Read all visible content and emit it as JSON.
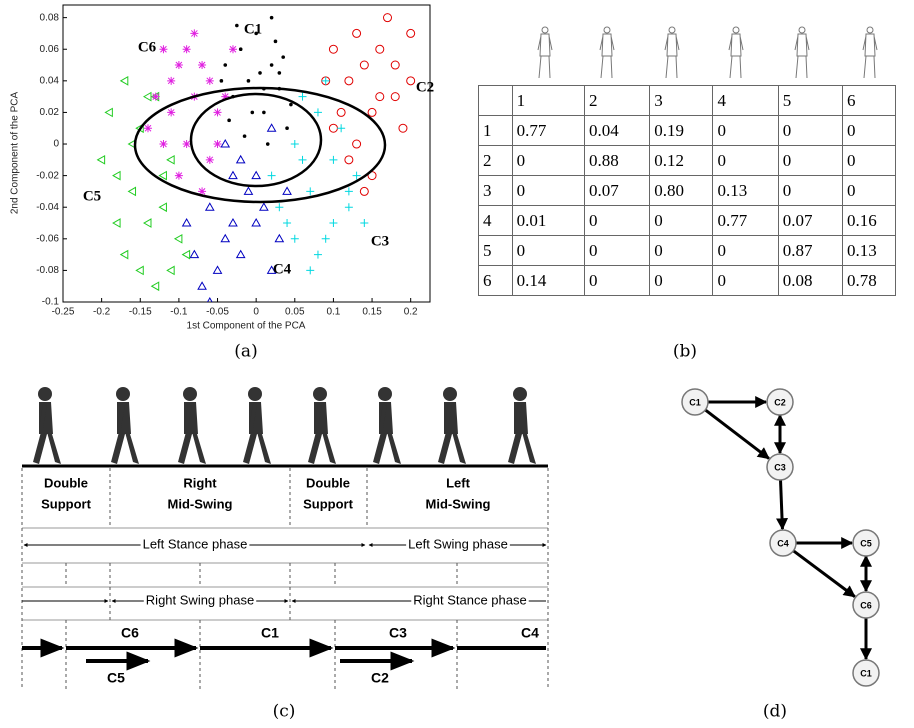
{
  "chart_data": {
    "type": "scatter",
    "xlabel": "1st Component of the PCA",
    "ylabel": "2nd Component of the PCA",
    "xlim": [
      -0.25,
      0.225
    ],
    "ylim": [
      -0.1,
      0.088
    ],
    "xticks": [
      -0.25,
      -0.2,
      -0.15,
      -0.1,
      -0.05,
      0,
      0.05,
      0.1,
      0.15,
      0.2
    ],
    "yticks": [
      -0.1,
      -0.08,
      -0.06,
      -0.04,
      -0.02,
      0,
      0.02,
      0.04,
      0.06,
      0.08
    ],
    "series": [
      {
        "name": "C1",
        "color": "#000000",
        "marker": "dot",
        "x": [
          -0.04,
          -0.03,
          -0.02,
          -0.01,
          0,
          0.01,
          0.02,
          0.03,
          0.04,
          -0.035,
          -0.015,
          0.005,
          0.025,
          0.045,
          -0.025,
          0.015,
          0.035,
          -0.005,
          0.02,
          0.01,
          0.03,
          -0.045
        ],
        "values": [
          0.05,
          0.03,
          0.06,
          0.04,
          0.07,
          0.02,
          0.05,
          0.035,
          0.01,
          0.015,
          0.005,
          0.045,
          0.065,
          0.025,
          0.075,
          0,
          0.055,
          0.02,
          0.08,
          0.035,
          0.045,
          0.04
        ]
      },
      {
        "name": "C2",
        "color": "#e00000",
        "marker": "circle",
        "x": [
          0.1,
          0.12,
          0.15,
          0.18,
          0.2,
          0.13,
          0.16,
          0.11,
          0.14,
          0.17,
          0.19,
          0.09,
          0.12,
          0.15,
          0.18,
          0.1,
          0.13,
          0.16,
          0.2,
          0.14
        ],
        "values": [
          0.06,
          0.04,
          0.02,
          0.05,
          0.07,
          0,
          0.03,
          0.02,
          0.05,
          0.08,
          0.01,
          0.04,
          -0.01,
          -0.02,
          0.03,
          0.01,
          0.07,
          0.06,
          0.04,
          -0.03
        ]
      },
      {
        "name": "C3",
        "color": "#00d8e0",
        "marker": "plus",
        "x": [
          0.02,
          0.05,
          0.08,
          0.1,
          0.12,
          0.04,
          0.07,
          0.09,
          0.11,
          0.03,
          0.06,
          0.13,
          0.08,
          0.1,
          0.05,
          0.14,
          0.07,
          0.09,
          0.12,
          0.06
        ],
        "values": [
          -0.02,
          0,
          0.02,
          -0.01,
          -0.04,
          -0.05,
          -0.03,
          -0.06,
          0.01,
          -0.04,
          0.03,
          -0.02,
          -0.07,
          -0.05,
          -0.06,
          -0.05,
          -0.08,
          0.04,
          -0.03,
          -0.01
        ]
      },
      {
        "name": "C4",
        "color": "#0000c0",
        "marker": "triangle",
        "x": [
          -0.04,
          -0.02,
          0,
          0.02,
          0.04,
          -0.06,
          -0.03,
          -0.01,
          0.01,
          0.03,
          -0.08,
          -0.05,
          -0.07,
          -0.04,
          -0.02,
          0,
          -0.09,
          -0.06,
          -0.03,
          0.02
        ],
        "values": [
          0,
          -0.01,
          -0.02,
          0.01,
          -0.03,
          -0.04,
          -0.05,
          -0.03,
          -0.04,
          -0.06,
          -0.07,
          -0.08,
          -0.09,
          -0.06,
          -0.07,
          -0.05,
          -0.05,
          -0.1,
          -0.02,
          -0.08
        ]
      },
      {
        "name": "C5",
        "color": "#22cc22",
        "marker": "triangle-left",
        "x": [
          -0.19,
          -0.17,
          -0.15,
          -0.13,
          -0.11,
          -0.18,
          -0.16,
          -0.14,
          -0.12,
          -0.1,
          -0.2,
          -0.17,
          -0.15,
          -0.13,
          -0.11,
          -0.16,
          -0.14,
          -0.12,
          -0.09,
          -0.18
        ],
        "values": [
          0.02,
          0.04,
          0.01,
          0.03,
          -0.01,
          -0.02,
          -0.03,
          -0.05,
          -0.04,
          -0.06,
          -0.01,
          -0.07,
          -0.08,
          -0.09,
          -0.08,
          0,
          0.03,
          -0.02,
          -0.07,
          -0.05
        ]
      },
      {
        "name": "C6",
        "color": "#e020e0",
        "marker": "star",
        "x": [
          -0.12,
          -0.1,
          -0.08,
          -0.06,
          -0.04,
          -0.13,
          -0.11,
          -0.09,
          -0.07,
          -0.05,
          -0.03,
          -0.12,
          -0.1,
          -0.08,
          -0.06,
          -0.14,
          -0.09,
          -0.07,
          -0.11,
          -0.05
        ],
        "values": [
          0.06,
          0.05,
          0.07,
          0.04,
          0.03,
          0.03,
          0.02,
          0,
          0.05,
          0.02,
          0.06,
          0,
          -0.02,
          0.03,
          -0.01,
          0.01,
          0.06,
          -0.03,
          0.04,
          0
        ]
      }
    ]
  },
  "table": {
    "header": [
      "1",
      "2",
      "3",
      "4",
      "5",
      "6"
    ],
    "rows": [
      [
        "1",
        "0.77",
        "0.04",
        "0.19",
        "0",
        "0",
        "0"
      ],
      [
        "2",
        "0",
        "0.88",
        "0.12",
        "0",
        "0",
        "0"
      ],
      [
        "3",
        "0",
        "0.07",
        "0.80",
        "0.13",
        "0",
        "0"
      ],
      [
        "4",
        "0.01",
        "0",
        "0",
        "0.77",
        "0.07",
        "0.16"
      ],
      [
        "5",
        "0",
        "0",
        "0",
        "0",
        "0.87",
        "0.13"
      ],
      [
        "6",
        "0.14",
        "0",
        "0",
        "0",
        "0.08",
        "0.78"
      ]
    ]
  },
  "gait": {
    "phases": [
      [
        "Double",
        "Support"
      ],
      [
        "Right",
        "Mid-Swing"
      ],
      [
        "Double",
        "Support"
      ],
      [
        "Left",
        "Mid-Swing"
      ]
    ],
    "stance_swing": [
      "Left Stance phase",
      "Left Swing phase",
      "Right Swing phase",
      "Right Stance phase"
    ],
    "clusters": [
      "C6",
      "C1",
      "C3",
      "C4",
      "C5",
      "C2"
    ]
  },
  "state_graph": {
    "nodes": [
      "C1",
      "C2",
      "C3",
      "C4",
      "C5",
      "C6",
      "C1"
    ]
  },
  "captions": [
    "(a)",
    "(b)",
    "(c)",
    "(d)"
  ]
}
